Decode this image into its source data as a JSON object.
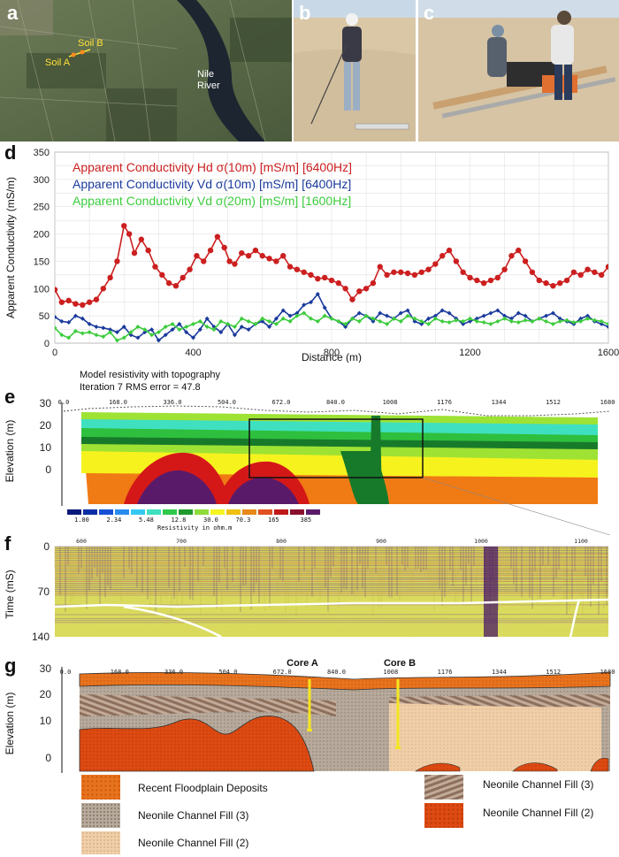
{
  "panels": {
    "a": {
      "label": "a",
      "soil_b": "Soil B",
      "soil_a": "Soil A",
      "river_line1": "Nile",
      "river_line2": "River"
    },
    "b": {
      "label": "b"
    },
    "c": {
      "label": "c"
    },
    "d": {
      "label": "d"
    },
    "e": {
      "label": "e",
      "caption1": "Model resistivity with topography",
      "caption2": "Iteration 7 RMS error = 47.8",
      "distance_marks": [
        "0.0",
        "168.0",
        "336.0",
        "504.0",
        "672.0",
        "840.0",
        "1008",
        "1176",
        "1344",
        "1512",
        "1680"
      ],
      "ylabel": "Elevation (m)",
      "yticks": [
        "30",
        "20",
        "10",
        "0"
      ],
      "resistivity_values": [
        "1.00",
        "2.34",
        "5.48",
        "12.8",
        "30.0",
        "70.3",
        "165",
        "385"
      ],
      "resistivity_title": "Resistivity in ohm.m",
      "scale_colors": [
        "#0a1a7a",
        "#0b2ea6",
        "#1550d6",
        "#2a8bef",
        "#35c9f2",
        "#3fe0c0",
        "#2fc94a",
        "#1e9a2a",
        "#8ddc3a",
        "#f5f520",
        "#f0c010",
        "#e88818",
        "#e05020",
        "#c01818",
        "#8a1030",
        "#5a1a6a"
      ],
      "section_colors": {
        "purple": "#5a1a6a",
        "red": "#d41818",
        "orange": "#f07a14",
        "yellow": "#f6f21e",
        "lime": "#9ee234",
        "green": "#2fbf3e",
        "darkgreen": "#177a2a",
        "cyan": "#3fe0c0"
      }
    },
    "f": {
      "label": "f",
      "ylabel": "Time (mS)",
      "yticks": [
        "0",
        "70",
        "140"
      ],
      "xticks": [
        "600",
        "700",
        "800",
        "900",
        "1000",
        "1100"
      ]
    },
    "g": {
      "label": "g",
      "distance_marks": [
        "0.0",
        "168.0",
        "336.0",
        "504.0",
        "672.0",
        "840.0",
        "1008",
        "1176",
        "1344",
        "1512",
        "1680"
      ],
      "ylabel": "Elevation (m)",
      "yticks": [
        "30",
        "20",
        "10",
        "0"
      ],
      "core_a": "Core A",
      "core_b": "Core B",
      "legend": [
        {
          "label": "Recent Floodplain Deposits",
          "color": "#e8731e"
        },
        {
          "label": "Neonile Channel Fill (3)",
          "color": "#b7aa9c"
        },
        {
          "label": "Neonile Channel Fill (2)",
          "color": "#f0cfa8"
        },
        {
          "label": "Neonile Channel Fill (3)",
          "color": "#a08070"
        },
        {
          "label": "Neonile Channel Fill (2)",
          "color": "#dd4a12"
        }
      ]
    }
  },
  "chart_data": {
    "type": "line",
    "title": "",
    "xlabel": "Distance (m)",
    "ylabel": "Apparent Conductivity (mS/m)",
    "xlim": [
      0,
      1600
    ],
    "ylim": [
      0,
      350
    ],
    "xticks": [
      0,
      400,
      800,
      1200,
      1600
    ],
    "yticks": [
      0,
      50,
      100,
      150,
      200,
      250,
      300,
      350
    ],
    "grid": true,
    "legend_position": "top-left",
    "series": [
      {
        "name": "Apparent Conductivity Hd σ(10m) [mS/m] [6400Hz]",
        "color": "#cc1f1f",
        "x": [
          0,
          20,
          40,
          60,
          80,
          100,
          120,
          140,
          160,
          180,
          200,
          215,
          230,
          250,
          270,
          290,
          310,
          330,
          350,
          370,
          390,
          410,
          430,
          450,
          470,
          490,
          505,
          520,
          540,
          560,
          580,
          600,
          620,
          640,
          660,
          680,
          700,
          720,
          740,
          760,
          780,
          800,
          820,
          840,
          860,
          880,
          900,
          920,
          940,
          960,
          980,
          1000,
          1020,
          1040,
          1060,
          1080,
          1100,
          1120,
          1140,
          1160,
          1180,
          1200,
          1220,
          1240,
          1260,
          1280,
          1300,
          1320,
          1340,
          1360,
          1380,
          1400,
          1420,
          1440,
          1460,
          1480,
          1500,
          1520,
          1540,
          1560,
          1580,
          1600
        ],
        "y": [
          98,
          75,
          78,
          72,
          70,
          75,
          80,
          100,
          120,
          150,
          215,
          200,
          165,
          190,
          170,
          140,
          125,
          110,
          105,
          120,
          135,
          160,
          150,
          170,
          195,
          175,
          150,
          145,
          165,
          160,
          170,
          160,
          155,
          150,
          160,
          140,
          135,
          130,
          125,
          118,
          120,
          115,
          110,
          100,
          80,
          95,
          100,
          110,
          140,
          125,
          130,
          130,
          128,
          125,
          130,
          135,
          145,
          160,
          170,
          150,
          130,
          120,
          115,
          110,
          115,
          120,
          135,
          160,
          170,
          150,
          130,
          115,
          110,
          105,
          110,
          115,
          130,
          125,
          135,
          130,
          125,
          140
        ]
      },
      {
        "name": "Apparent Conductivity Vd σ(10m) [mS/m] [6400Hz]",
        "color": "#1a3a9c",
        "x": [
          0,
          20,
          40,
          60,
          80,
          100,
          120,
          140,
          160,
          180,
          200,
          220,
          240,
          260,
          280,
          300,
          320,
          340,
          360,
          380,
          400,
          420,
          440,
          460,
          480,
          500,
          520,
          540,
          560,
          580,
          600,
          620,
          640,
          660,
          680,
          700,
          720,
          740,
          760,
          780,
          800,
          820,
          840,
          860,
          880,
          900,
          920,
          940,
          960,
          980,
          1000,
          1020,
          1040,
          1060,
          1080,
          1100,
          1120,
          1140,
          1160,
          1180,
          1200,
          1220,
          1240,
          1260,
          1280,
          1300,
          1320,
          1340,
          1360,
          1380,
          1400,
          1420,
          1440,
          1460,
          1480,
          1500,
          1520,
          1540,
          1560,
          1580,
          1600
        ],
        "y": [
          48,
          40,
          38,
          50,
          45,
          35,
          30,
          28,
          25,
          20,
          30,
          15,
          10,
          20,
          25,
          5,
          15,
          25,
          35,
          20,
          10,
          25,
          45,
          30,
          20,
          35,
          15,
          30,
          25,
          35,
          40,
          30,
          45,
          60,
          50,
          55,
          70,
          75,
          90,
          65,
          45,
          40,
          30,
          45,
          55,
          50,
          40,
          55,
          50,
          45,
          55,
          60,
          40,
          35,
          45,
          50,
          60,
          55,
          45,
          35,
          40,
          45,
          50,
          55,
          60,
          50,
          45,
          55,
          50,
          40,
          45,
          50,
          55,
          45,
          40,
          35,
          45,
          50,
          40,
          35,
          30
        ]
      },
      {
        "name": "Apparent Conductivity Vd σ(20m) [mS/m] [1600Hz]",
        "color": "#3ccc3c",
        "x": [
          0,
          20,
          40,
          60,
          80,
          100,
          120,
          140,
          160,
          180,
          200,
          220,
          240,
          260,
          280,
          300,
          320,
          340,
          360,
          380,
          400,
          420,
          440,
          460,
          480,
          500,
          520,
          540,
          560,
          580,
          600,
          620,
          640,
          660,
          680,
          700,
          720,
          740,
          760,
          780,
          800,
          820,
          840,
          860,
          880,
          900,
          920,
          940,
          960,
          980,
          1000,
          1020,
          1040,
          1060,
          1080,
          1100,
          1120,
          1140,
          1160,
          1180,
          1200,
          1220,
          1240,
          1260,
          1280,
          1300,
          1320,
          1340,
          1360,
          1380,
          1400,
          1420,
          1440,
          1460,
          1480,
          1500,
          1520,
          1540,
          1560,
          1580,
          1600
        ],
        "y": [
          28,
          15,
          10,
          22,
          18,
          20,
          15,
          12,
          20,
          5,
          10,
          20,
          30,
          25,
          15,
          20,
          30,
          35,
          25,
          30,
          35,
          40,
          30,
          25,
          40,
          35,
          30,
          45,
          40,
          35,
          45,
          40,
          35,
          45,
          40,
          50,
          55,
          45,
          40,
          50,
          45,
          40,
          35,
          45,
          40,
          50,
          45,
          40,
          35,
          45,
          40,
          50,
          45,
          40,
          35,
          45,
          40,
          38,
          42,
          40,
          45,
          40,
          38,
          35,
          40,
          45,
          40,
          38,
          42,
          40,
          45,
          40,
          35,
          40,
          42,
          38,
          40,
          45,
          42,
          40,
          35
        ]
      }
    ]
  }
}
